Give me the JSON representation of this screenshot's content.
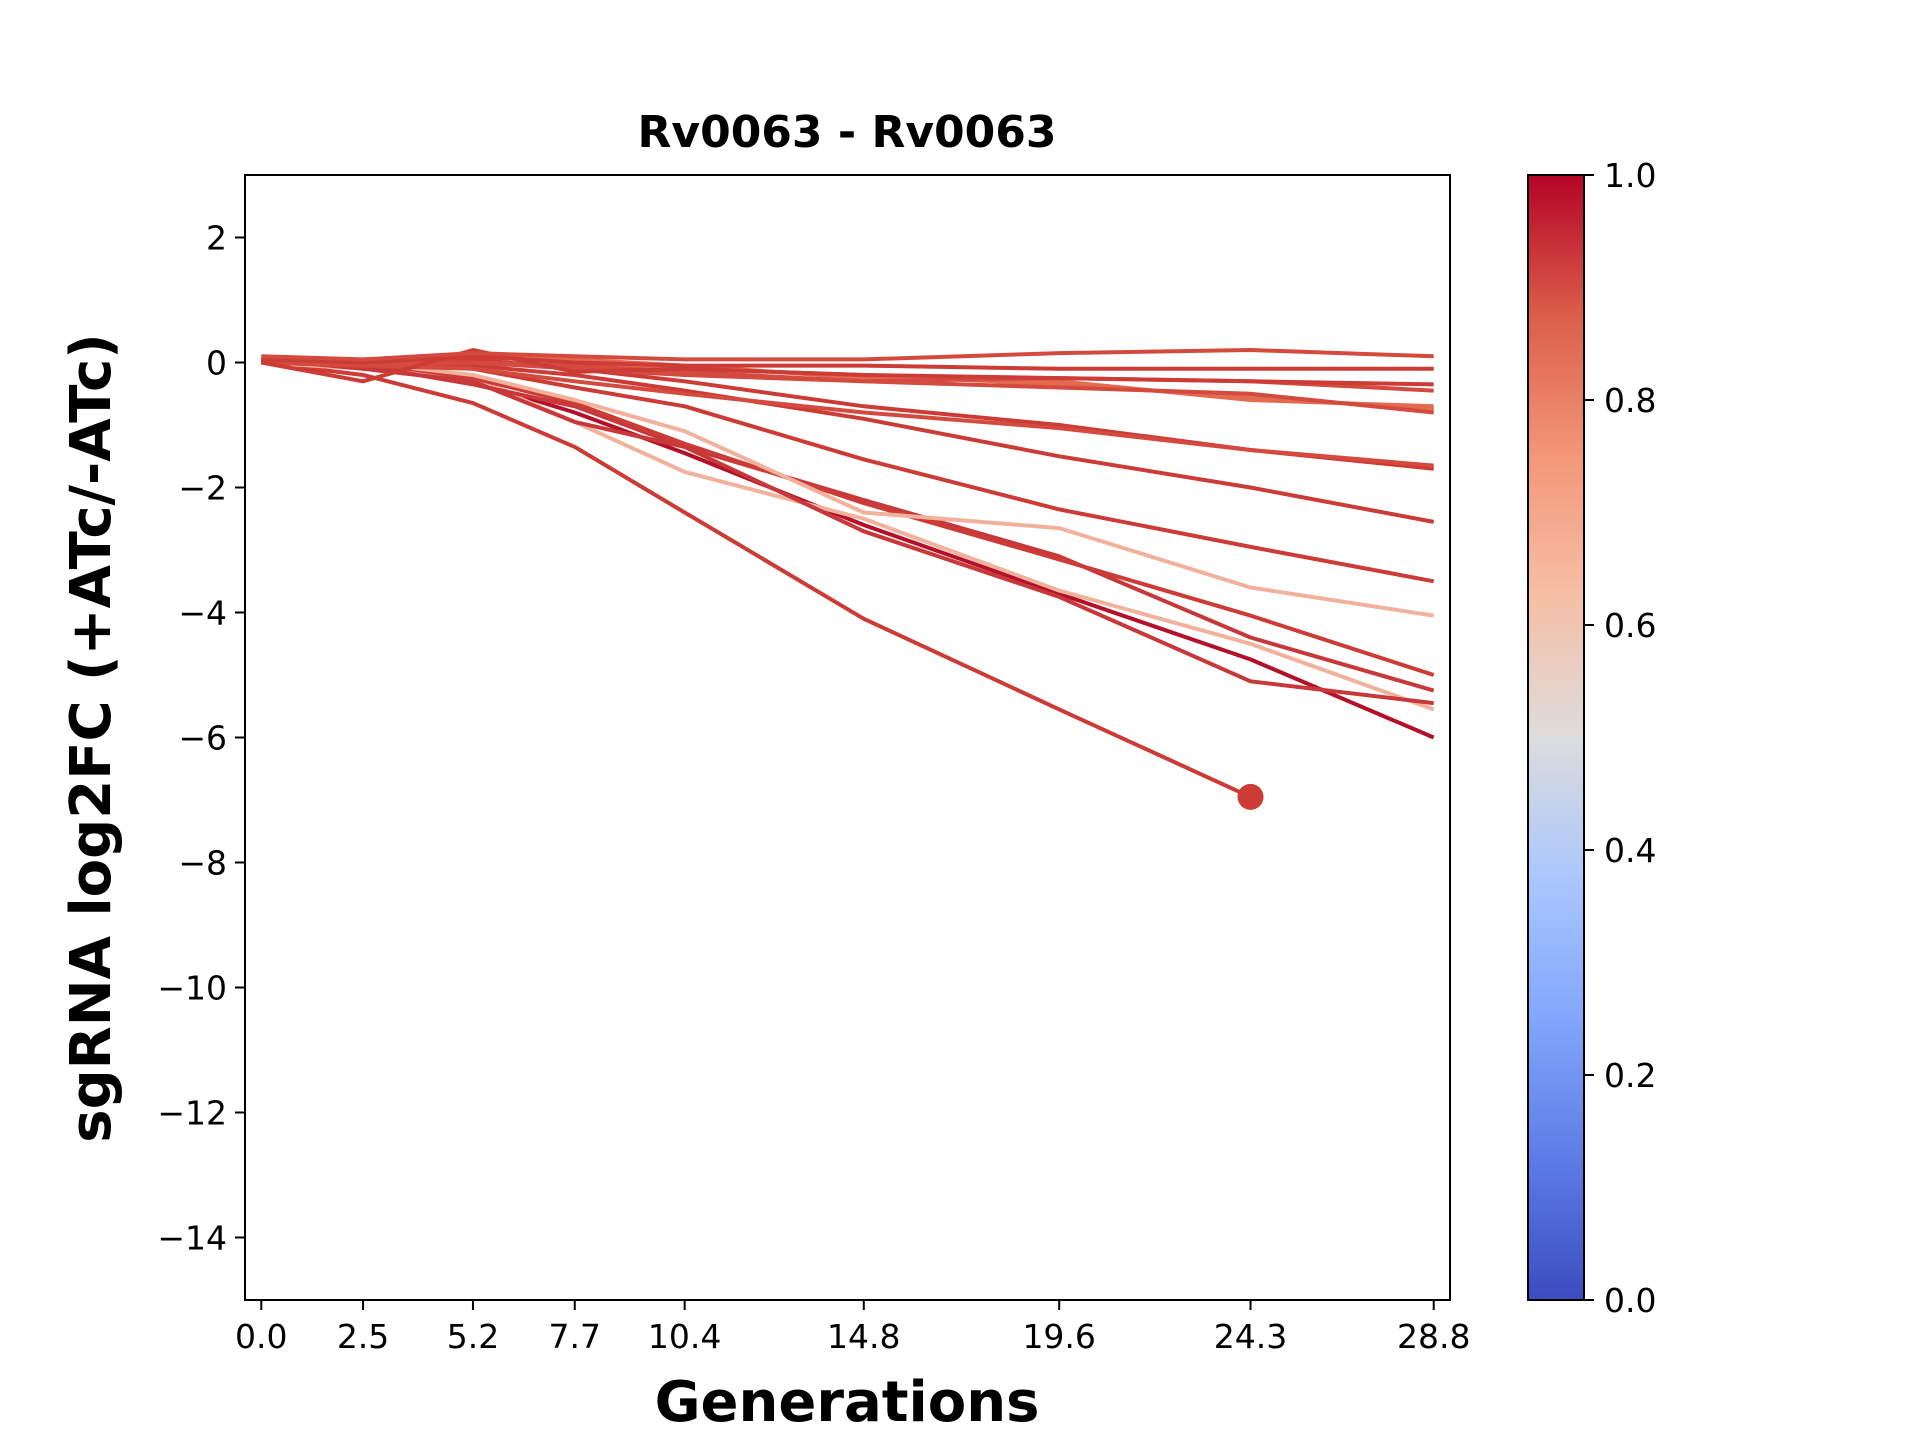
{
  "chart_data": {
    "type": "line",
    "title": "Rv0063 - Rv0063",
    "xlabel": "Generations",
    "ylabel": "sgRNA log2FC (+ATc/-ATc)",
    "xlim": [
      -0.4,
      29.2
    ],
    "ylim": [
      -15,
      3
    ],
    "x_ticks": [
      "0.0",
      "2.5",
      "5.2",
      "7.7",
      "10.4",
      "14.8",
      "19.6",
      "24.3",
      "28.8"
    ],
    "y_ticks": [
      2,
      0,
      -2,
      -4,
      -6,
      -8,
      -10,
      -12,
      -14
    ],
    "y_tick_labels": [
      "2",
      "0",
      "−2",
      "−4",
      "−6",
      "−8",
      "−10",
      "−12",
      "−14"
    ],
    "colorbar": {
      "colormap": "coolwarm",
      "range": [
        0.0,
        1.0
      ],
      "ticks": [
        "0.0",
        "0.2",
        "0.4",
        "0.6",
        "0.8",
        "1.0"
      ]
    },
    "grid": false,
    "series": [
      {
        "color": "#cc3b35",
        "x": [
          0.0,
          2.5,
          5.2,
          7.7,
          10.4,
          14.8,
          19.6,
          24.3
        ],
        "y": [
          0.0,
          -0.2,
          -0.65,
          -1.35,
          -2.4,
          -4.1,
          -5.55,
          -6.95
        ],
        "end_marker": true
      },
      {
        "color": "#b5102a",
        "x": [
          0.0,
          2.5,
          5.2,
          7.7,
          10.4,
          14.8,
          19.6,
          24.3,
          28.8
        ],
        "y": [
          0.05,
          -0.05,
          -0.3,
          -0.8,
          -1.45,
          -2.6,
          -3.7,
          -4.75,
          -6.0
        ]
      },
      {
        "color": "#f2b19b",
        "x": [
          0.0,
          2.5,
          5.2,
          7.7,
          10.4,
          14.8,
          19.6,
          24.3,
          28.8
        ],
        "y": [
          0.0,
          -0.1,
          -0.25,
          -0.95,
          -1.75,
          -2.5,
          -3.65,
          -4.5,
          -5.55
        ]
      },
      {
        "color": "#c8383a",
        "x": [
          0.0,
          2.5,
          5.2,
          7.7,
          10.4,
          14.8,
          19.6,
          24.3,
          28.8
        ],
        "y": [
          0.05,
          -0.1,
          -0.3,
          -0.95,
          -1.35,
          -2.7,
          -3.75,
          -5.1,
          -5.45
        ]
      },
      {
        "color": "#c8383a",
        "x": [
          0.0,
          2.5,
          5.2,
          7.7,
          10.4,
          14.8,
          19.6,
          24.3,
          28.8
        ],
        "y": [
          0.0,
          -0.05,
          -0.35,
          -0.7,
          -1.35,
          -2.2,
          -3.1,
          -4.4,
          -5.25
        ]
      },
      {
        "color": "#cc3b35",
        "x": [
          0.0,
          2.5,
          5.2,
          7.7,
          10.4,
          14.8,
          19.6,
          24.3,
          28.8
        ],
        "y": [
          0.0,
          0.0,
          -0.25,
          -0.65,
          -1.3,
          -2.25,
          -3.15,
          -4.05,
          -5.0
        ]
      },
      {
        "color": "#f2b19b",
        "x": [
          0.0,
          2.5,
          5.2,
          7.7,
          10.4,
          14.8,
          19.6,
          24.3,
          28.8
        ],
        "y": [
          0.0,
          0.0,
          -0.2,
          -0.6,
          -1.1,
          -2.4,
          -2.65,
          -3.6,
          -4.05
        ]
      },
      {
        "color": "#cc3b35",
        "x": [
          0.0,
          2.5,
          5.2,
          7.7,
          10.4,
          14.8,
          19.6,
          24.3,
          28.8
        ],
        "y": [
          0.0,
          0.0,
          -0.1,
          -0.4,
          -0.7,
          -1.55,
          -2.35,
          -2.95,
          -3.5
        ]
      },
      {
        "color": "#cc3b35",
        "x": [
          0.0,
          2.5,
          5.2,
          7.7,
          10.4,
          14.8,
          19.6,
          24.3,
          28.8
        ],
        "y": [
          0.0,
          0.0,
          -0.05,
          -0.2,
          -0.45,
          -0.9,
          -1.5,
          -2.0,
          -2.55
        ]
      },
      {
        "color": "#cc3b35",
        "x": [
          0.0,
          2.5,
          5.2,
          7.7,
          10.4,
          14.8,
          19.6,
          24.3,
          28.8
        ],
        "y": [
          0.0,
          0.0,
          0.05,
          -0.1,
          -0.3,
          -0.7,
          -1.0,
          -1.4,
          -1.7
        ]
      },
      {
        "color": "#d44a3e",
        "x": [
          0.0,
          2.5,
          5.2,
          7.7,
          10.4,
          14.8,
          19.6,
          24.3,
          28.8
        ],
        "y": [
          0.0,
          -0.05,
          -0.1,
          -0.3,
          -0.5,
          -0.8,
          -1.05,
          -1.4,
          -1.65
        ]
      },
      {
        "color": "#e36a50",
        "x": [
          0.0,
          2.5,
          5.2,
          7.7,
          10.4,
          14.8,
          19.6,
          24.3,
          28.8
        ],
        "y": [
          0.0,
          0.0,
          0.1,
          0.0,
          -0.1,
          -0.2,
          -0.35,
          -0.55,
          -0.75
        ]
      },
      {
        "color": "#e36a50",
        "x": [
          0.0,
          2.5,
          5.2,
          7.7,
          10.4,
          14.8,
          19.6,
          24.3,
          28.8
        ],
        "y": [
          0.05,
          0.0,
          0.15,
          0.05,
          -0.05,
          -0.25,
          -0.3,
          -0.6,
          -0.7
        ]
      },
      {
        "color": "#d44a3e",
        "x": [
          0.0,
          2.5,
          5.2,
          7.7,
          10.4,
          14.8,
          19.6,
          24.3,
          28.8
        ],
        "y": [
          0.0,
          0.0,
          0.0,
          -0.05,
          -0.15,
          -0.3,
          -0.4,
          -0.5,
          -0.8
        ]
      },
      {
        "color": "#d44a3e",
        "x": [
          0.0,
          2.5,
          5.2,
          7.7,
          10.4,
          14.8,
          19.6,
          24.3,
          28.8
        ],
        "y": [
          0.0,
          -0.05,
          0.0,
          -0.1,
          -0.2,
          -0.3,
          -0.25,
          -0.3,
          -0.45
        ]
      },
      {
        "color": "#cc3b35",
        "x": [
          0.0,
          2.5,
          5.2,
          7.7,
          10.4,
          14.8,
          19.6,
          24.3,
          28.8
        ],
        "y": [
          0.0,
          -0.3,
          0.2,
          -0.15,
          -0.1,
          -0.2,
          -0.25,
          -0.3,
          -0.35
        ]
      },
      {
        "color": "#cc3b35",
        "x": [
          0.0,
          2.5,
          5.2,
          7.7,
          10.4,
          14.8,
          19.6,
          24.3,
          28.8
        ],
        "y": [
          0.05,
          0.0,
          0.1,
          0.0,
          -0.05,
          -0.05,
          -0.1,
          -0.1,
          -0.1
        ]
      },
      {
        "color": "#d44a3e",
        "x": [
          0.0,
          2.5,
          5.2,
          7.7,
          10.4,
          14.8,
          19.6,
          24.3,
          28.8
        ],
        "y": [
          0.1,
          0.05,
          0.15,
          0.1,
          0.05,
          0.05,
          0.15,
          0.2,
          0.1
        ]
      }
    ]
  }
}
